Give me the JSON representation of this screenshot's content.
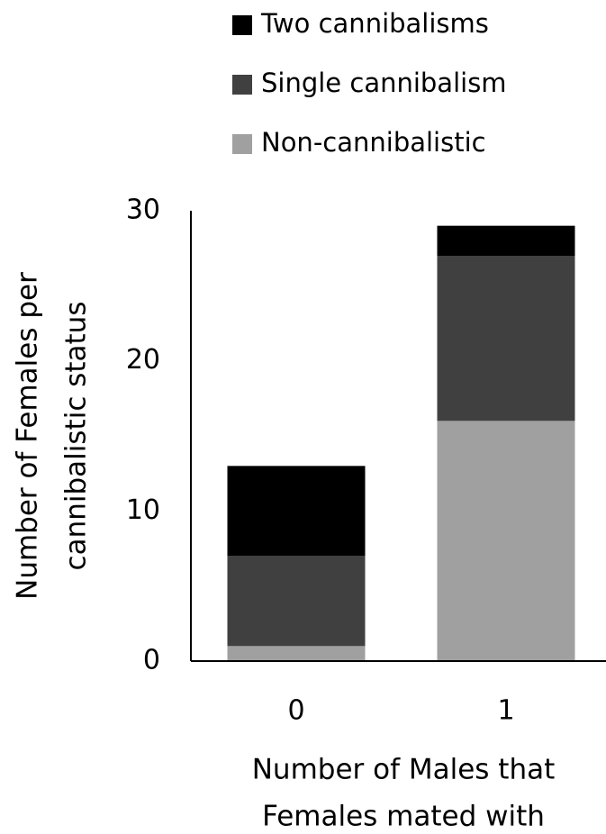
{
  "chart_data": {
    "type": "stacked-bar",
    "categories": [
      "0",
      "1"
    ],
    "series": [
      {
        "name": "Non-cannibalistic",
        "color": "#a0a0a0",
        "values": [
          1,
          16
        ]
      },
      {
        "name": "Single cannibalism",
        "color": "#404040",
        "values": [
          6,
          11
        ]
      },
      {
        "name": "Two cannibalisms",
        "color": "#000000",
        "values": [
          6,
          2
        ]
      }
    ],
    "ylim": [
      0,
      30
    ],
    "yticks": [
      0,
      10,
      20,
      30
    ],
    "xlabel": [
      "Number of Males that",
      "Females mated with"
    ],
    "ylabel": [
      "Number of Females per",
      "cannibalistic status"
    ],
    "legend": "top"
  }
}
